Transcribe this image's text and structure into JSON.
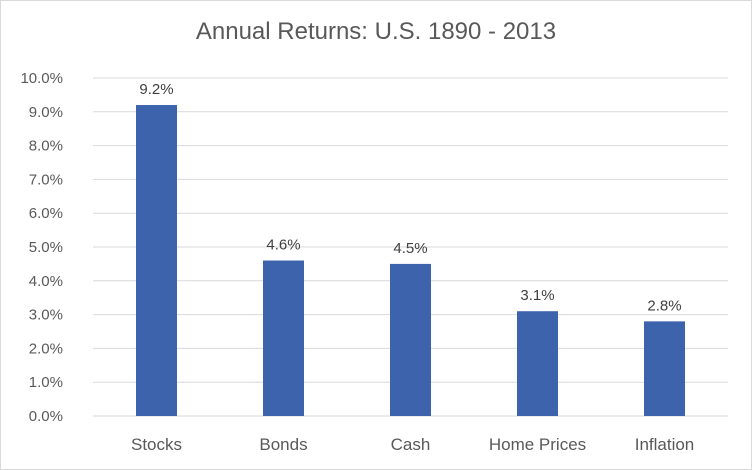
{
  "chart_data": {
    "type": "bar",
    "title": "Annual Returns: U.S. 1890 - 2013",
    "xlabel": "",
    "ylabel": "",
    "categories": [
      "Stocks",
      "Bonds",
      "Cash",
      "Home Prices",
      "Inflation"
    ],
    "values": [
      9.2,
      4.6,
      4.5,
      3.1,
      2.8
    ],
    "data_labels": [
      "9.2%",
      "4.6%",
      "4.5%",
      "3.1%",
      "2.8%"
    ],
    "ylim": [
      0,
      10
    ],
    "yticks": [
      "0.0%",
      "1.0%",
      "2.0%",
      "3.0%",
      "4.0%",
      "5.0%",
      "6.0%",
      "7.0%",
      "8.0%",
      "9.0%",
      "10.0%"
    ],
    "grid": true,
    "legend": "none",
    "bar_color": "#3c63ac",
    "grid_color": "#d9d9d9",
    "text_color": "#595959"
  }
}
